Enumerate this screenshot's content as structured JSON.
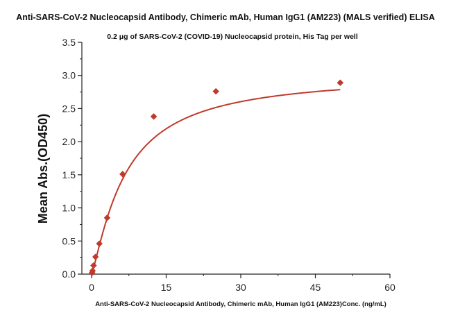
{
  "chart_data": {
    "type": "scatter",
    "title": "Anti-SARS-CoV-2 Nucleocapsid Antibody, Chimeric mAb, Human IgG1 (AM223) (MALS verified) ELISA",
    "subtitle": "0.2 μg of SARS-CoV-2 (COVID-19) Nucleocapsid protein, His Tag per well",
    "xlabel": "Anti-SARS-CoV-2 Nucleocapsid Antibody, Chimeric mAb, Human IgG1 (AM223)Conc. (ng/mL)",
    "ylabel": "Mean Abs.(OD450)",
    "xlim": [
      0,
      60
    ],
    "ylim": [
      0,
      3.5
    ],
    "x_ticks": [
      "0",
      "15",
      "30",
      "45",
      "60"
    ],
    "y_ticks": [
      "0.0",
      "0.5",
      "1.0",
      "1.5",
      "2.0",
      "2.5",
      "3.0",
      "3.5"
    ],
    "grid": false,
    "series": [
      {
        "marker": "diamond",
        "x": [
          0.098,
          0.195,
          0.391,
          0.781,
          1.563,
          3.125,
          6.25,
          12.5,
          25,
          50
        ],
        "y": [
          0.02,
          0.05,
          0.13,
          0.26,
          0.46,
          0.85,
          1.51,
          2.38,
          2.76,
          2.89
        ]
      }
    ],
    "fit_curve": {
      "type": "4PL",
      "bottom": 0.0,
      "top": 3.03,
      "ec50": 6.8,
      "hill": 1.22
    },
    "colors": {
      "series": "#c0392b",
      "axis": "#222222"
    }
  }
}
